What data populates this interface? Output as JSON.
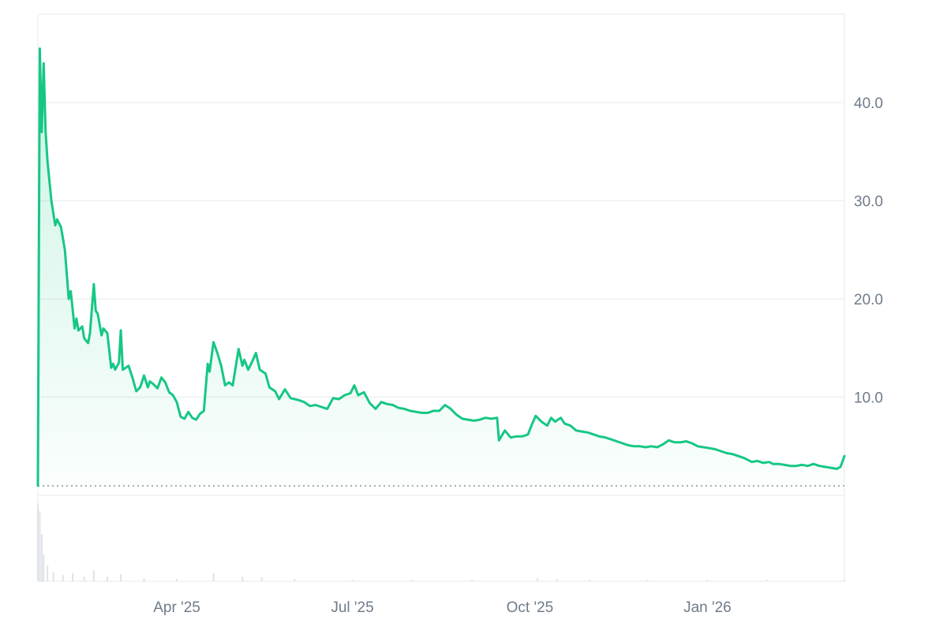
{
  "chart_data": {
    "type": "area",
    "title": "",
    "xlabel": "",
    "ylabel": "",
    "x_range": [
      "2025-01-19",
      "2026-03-13"
    ],
    "ylim": [
      0,
      49
    ],
    "y_ticks": [
      10,
      20,
      30,
      40
    ],
    "y_tick_labels": [
      "10.0",
      "20.0",
      "30.0",
      "40.0"
    ],
    "y_axis_position": "right",
    "x_ticks": [
      {
        "date": "2025-04-01",
        "label": "Apr '25"
      },
      {
        "date": "2025-07-01",
        "label": "Jul '25"
      },
      {
        "date": "2025-10-01",
        "label": "Oct '25"
      },
      {
        "date": "2026-01-01",
        "label": "Jan '26"
      }
    ],
    "grid": true,
    "baseline": 1.0,
    "colors": {
      "line": "#16c784",
      "grid": "#eef0f3",
      "tick_text": "#6f7b8a",
      "volume": "#dfe3e8",
      "baseline": "#8a929c"
    },
    "series": [
      {
        "name": "",
        "points": [
          [
            "2025-01-19",
            1.0
          ],
          [
            "2025-01-20",
            45.5
          ],
          [
            "2025-01-21",
            37.0
          ],
          [
            "2025-01-22",
            44.0
          ],
          [
            "2025-01-23",
            37.0
          ],
          [
            "2025-01-24",
            34.0
          ],
          [
            "2025-01-26",
            30.0
          ],
          [
            "2025-01-28",
            27.5
          ],
          [
            "2025-01-29",
            28.1
          ],
          [
            "2025-01-31",
            27.3
          ],
          [
            "2025-02-02",
            25.0
          ],
          [
            "2025-02-04",
            20.0
          ],
          [
            "2025-02-05",
            20.8
          ],
          [
            "2025-02-06",
            19.0
          ],
          [
            "2025-02-07",
            17.0
          ],
          [
            "2025-02-08",
            18.0
          ],
          [
            "2025-02-09",
            16.8
          ],
          [
            "2025-02-11",
            17.2
          ],
          [
            "2025-02-12",
            16.0
          ],
          [
            "2025-02-14",
            15.5
          ],
          [
            "2025-02-15",
            16.5
          ],
          [
            "2025-02-17",
            21.5
          ],
          [
            "2025-02-18",
            18.8
          ],
          [
            "2025-02-19",
            18.5
          ],
          [
            "2025-02-21",
            16.3
          ],
          [
            "2025-02-22",
            17.0
          ],
          [
            "2025-02-24",
            16.5
          ],
          [
            "2025-02-26",
            13.0
          ],
          [
            "2025-02-27",
            13.4
          ],
          [
            "2025-02-28",
            12.8
          ],
          [
            "2025-03-02",
            13.5
          ],
          [
            "2025-03-03",
            16.8
          ],
          [
            "2025-03-04",
            12.8
          ],
          [
            "2025-03-07",
            13.2
          ],
          [
            "2025-03-09",
            12.0
          ],
          [
            "2025-03-11",
            10.6
          ],
          [
            "2025-03-13",
            11.0
          ],
          [
            "2025-03-15",
            12.2
          ],
          [
            "2025-03-17",
            11.0
          ],
          [
            "2025-03-18",
            11.6
          ],
          [
            "2025-03-20",
            11.3
          ],
          [
            "2025-03-22",
            10.9
          ],
          [
            "2025-03-24",
            12.0
          ],
          [
            "2025-03-26",
            11.5
          ],
          [
            "2025-03-28",
            10.5
          ],
          [
            "2025-03-30",
            10.2
          ],
          [
            "2025-04-01",
            9.5
          ],
          [
            "2025-04-03",
            8.0
          ],
          [
            "2025-04-05",
            7.8
          ],
          [
            "2025-04-07",
            8.5
          ],
          [
            "2025-04-09",
            7.9
          ],
          [
            "2025-04-11",
            7.7
          ],
          [
            "2025-04-13",
            8.3
          ],
          [
            "2025-04-15",
            8.6
          ],
          [
            "2025-04-17",
            13.4
          ],
          [
            "2025-04-18",
            12.6
          ],
          [
            "2025-04-20",
            15.6
          ],
          [
            "2025-04-22",
            14.5
          ],
          [
            "2025-04-24",
            13.2
          ],
          [
            "2025-04-26",
            11.2
          ],
          [
            "2025-04-28",
            11.5
          ],
          [
            "2025-04-30",
            11.2
          ],
          [
            "2025-05-03",
            14.9
          ],
          [
            "2025-05-05",
            13.2
          ],
          [
            "2025-05-06",
            13.8
          ],
          [
            "2025-05-08",
            12.8
          ],
          [
            "2025-05-10",
            13.6
          ],
          [
            "2025-05-12",
            14.5
          ],
          [
            "2025-05-14",
            12.8
          ],
          [
            "2025-05-17",
            12.4
          ],
          [
            "2025-05-19",
            11.0
          ],
          [
            "2025-05-22",
            10.6
          ],
          [
            "2025-05-24",
            9.8
          ],
          [
            "2025-05-27",
            10.8
          ],
          [
            "2025-05-30",
            9.9
          ],
          [
            "2025-06-03",
            9.7
          ],
          [
            "2025-06-06",
            9.5
          ],
          [
            "2025-06-09",
            9.1
          ],
          [
            "2025-06-12",
            9.2
          ],
          [
            "2025-06-15",
            9.0
          ],
          [
            "2025-06-18",
            8.8
          ],
          [
            "2025-06-21",
            9.9
          ],
          [
            "2025-06-24",
            9.8
          ],
          [
            "2025-06-27",
            10.2
          ],
          [
            "2025-06-30",
            10.4
          ],
          [
            "2025-07-02",
            11.2
          ],
          [
            "2025-07-04",
            10.2
          ],
          [
            "2025-07-07",
            10.5
          ],
          [
            "2025-07-10",
            9.4
          ],
          [
            "2025-07-13",
            8.8
          ],
          [
            "2025-07-16",
            9.5
          ],
          [
            "2025-07-19",
            9.3
          ],
          [
            "2025-07-22",
            9.2
          ],
          [
            "2025-07-25",
            8.9
          ],
          [
            "2025-07-28",
            8.8
          ],
          [
            "2025-07-31",
            8.6
          ],
          [
            "2025-08-03",
            8.5
          ],
          [
            "2025-08-06",
            8.4
          ],
          [
            "2025-08-09",
            8.4
          ],
          [
            "2025-08-12",
            8.6
          ],
          [
            "2025-08-15",
            8.6
          ],
          [
            "2025-08-18",
            9.2
          ],
          [
            "2025-08-21",
            8.8
          ],
          [
            "2025-08-24",
            8.2
          ],
          [
            "2025-08-27",
            7.8
          ],
          [
            "2025-08-30",
            7.7
          ],
          [
            "2025-09-02",
            7.6
          ],
          [
            "2025-09-05",
            7.7
          ],
          [
            "2025-09-08",
            7.9
          ],
          [
            "2025-09-11",
            7.8
          ],
          [
            "2025-09-14",
            7.9
          ],
          [
            "2025-09-15",
            5.6
          ],
          [
            "2025-09-18",
            6.6
          ],
          [
            "2025-09-21",
            5.9
          ],
          [
            "2025-09-24",
            6.0
          ],
          [
            "2025-09-27",
            6.0
          ],
          [
            "2025-09-30",
            6.2
          ],
          [
            "2025-10-02",
            7.2
          ],
          [
            "2025-10-04",
            8.1
          ],
          [
            "2025-10-07",
            7.5
          ],
          [
            "2025-10-10",
            7.1
          ],
          [
            "2025-10-12",
            7.9
          ],
          [
            "2025-10-14",
            7.5
          ],
          [
            "2025-10-17",
            7.9
          ],
          [
            "2025-10-19",
            7.3
          ],
          [
            "2025-10-22",
            7.1
          ],
          [
            "2025-10-25",
            6.6
          ],
          [
            "2025-10-28",
            6.5
          ],
          [
            "2025-10-31",
            6.4
          ],
          [
            "2025-11-03",
            6.2
          ],
          [
            "2025-11-06",
            6.0
          ],
          [
            "2025-11-09",
            5.9
          ],
          [
            "2025-11-12",
            5.7
          ],
          [
            "2025-11-15",
            5.5
          ],
          [
            "2025-11-18",
            5.3
          ],
          [
            "2025-11-21",
            5.1
          ],
          [
            "2025-11-24",
            5.0
          ],
          [
            "2025-11-27",
            5.0
          ],
          [
            "2025-11-30",
            4.9
          ],
          [
            "2025-12-03",
            5.0
          ],
          [
            "2025-12-06",
            4.9
          ],
          [
            "2025-12-09",
            5.2
          ],
          [
            "2025-12-12",
            5.6
          ],
          [
            "2025-12-15",
            5.4
          ],
          [
            "2025-12-18",
            5.4
          ],
          [
            "2025-12-21",
            5.5
          ],
          [
            "2025-12-24",
            5.3
          ],
          [
            "2025-12-27",
            5.0
          ],
          [
            "2025-12-30",
            4.9
          ],
          [
            "2026-01-02",
            4.8
          ],
          [
            "2026-01-05",
            4.7
          ],
          [
            "2026-01-08",
            4.5
          ],
          [
            "2026-01-11",
            4.3
          ],
          [
            "2026-01-14",
            4.2
          ],
          [
            "2026-01-17",
            4.0
          ],
          [
            "2026-01-20",
            3.8
          ],
          [
            "2026-01-22",
            3.6
          ],
          [
            "2026-01-24",
            3.4
          ],
          [
            "2026-01-27",
            3.5
          ],
          [
            "2026-01-30",
            3.3
          ],
          [
            "2026-02-02",
            3.4
          ],
          [
            "2026-02-04",
            3.2
          ],
          [
            "2026-02-07",
            3.2
          ],
          [
            "2026-02-10",
            3.1
          ],
          [
            "2026-02-13",
            3.0
          ],
          [
            "2026-02-16",
            3.0
          ],
          [
            "2026-02-19",
            3.1
          ],
          [
            "2026-02-22",
            3.0
          ],
          [
            "2026-02-25",
            3.2
          ],
          [
            "2026-02-28",
            3.0
          ],
          [
            "2026-03-03",
            2.9
          ],
          [
            "2026-03-06",
            2.8
          ],
          [
            "2026-03-09",
            2.7
          ],
          [
            "2026-03-11",
            2.9
          ],
          [
            "2026-03-13",
            4.0
          ]
        ]
      }
    ],
    "volume": {
      "max": 100,
      "points": [
        [
          "2025-01-19",
          100
        ],
        [
          "2025-01-20",
          90
        ],
        [
          "2025-01-21",
          60
        ],
        [
          "2025-01-22",
          35
        ],
        [
          "2025-01-24",
          20
        ],
        [
          "2025-01-27",
          12
        ],
        [
          "2025-02-01",
          8
        ],
        [
          "2025-02-06",
          10
        ],
        [
          "2025-02-12",
          6
        ],
        [
          "2025-02-17",
          14
        ],
        [
          "2025-02-24",
          6
        ],
        [
          "2025-03-03",
          9
        ],
        [
          "2025-03-15",
          4
        ],
        [
          "2025-04-01",
          3
        ],
        [
          "2025-04-20",
          10
        ],
        [
          "2025-05-05",
          6
        ],
        [
          "2025-05-15",
          5
        ],
        [
          "2025-06-01",
          3
        ],
        [
          "2025-07-01",
          2
        ],
        [
          "2025-08-01",
          2
        ],
        [
          "2025-09-01",
          2
        ],
        [
          "2025-10-05",
          4
        ],
        [
          "2025-10-15",
          3
        ],
        [
          "2025-11-01",
          2
        ],
        [
          "2025-12-01",
          2
        ],
        [
          "2026-01-01",
          2
        ],
        [
          "2026-02-01",
          2
        ],
        [
          "2026-03-13",
          2
        ]
      ]
    }
  }
}
